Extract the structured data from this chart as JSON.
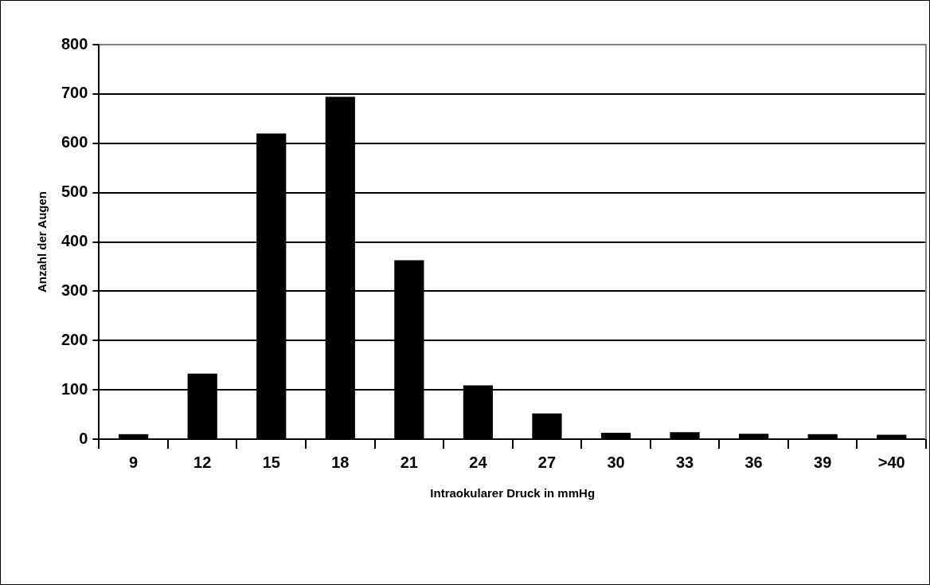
{
  "chart_data": {
    "type": "bar",
    "categories": [
      "9",
      "12",
      "15",
      "18",
      "21",
      "24",
      "27",
      "30",
      "33",
      "36",
      "39",
      ">40"
    ],
    "values": [
      10,
      133,
      620,
      694,
      363,
      109,
      52,
      13,
      14,
      11,
      10,
      9
    ],
    "color": "#000000",
    "xlabel": "Intraokularer Druck in mmHg",
    "ylabel": "Anzahl der Augen",
    "ylim": [
      0,
      800
    ],
    "yticks": [
      0,
      100,
      200,
      300,
      400,
      500,
      600,
      700,
      800
    ],
    "grid": "y",
    "legend": false
  }
}
